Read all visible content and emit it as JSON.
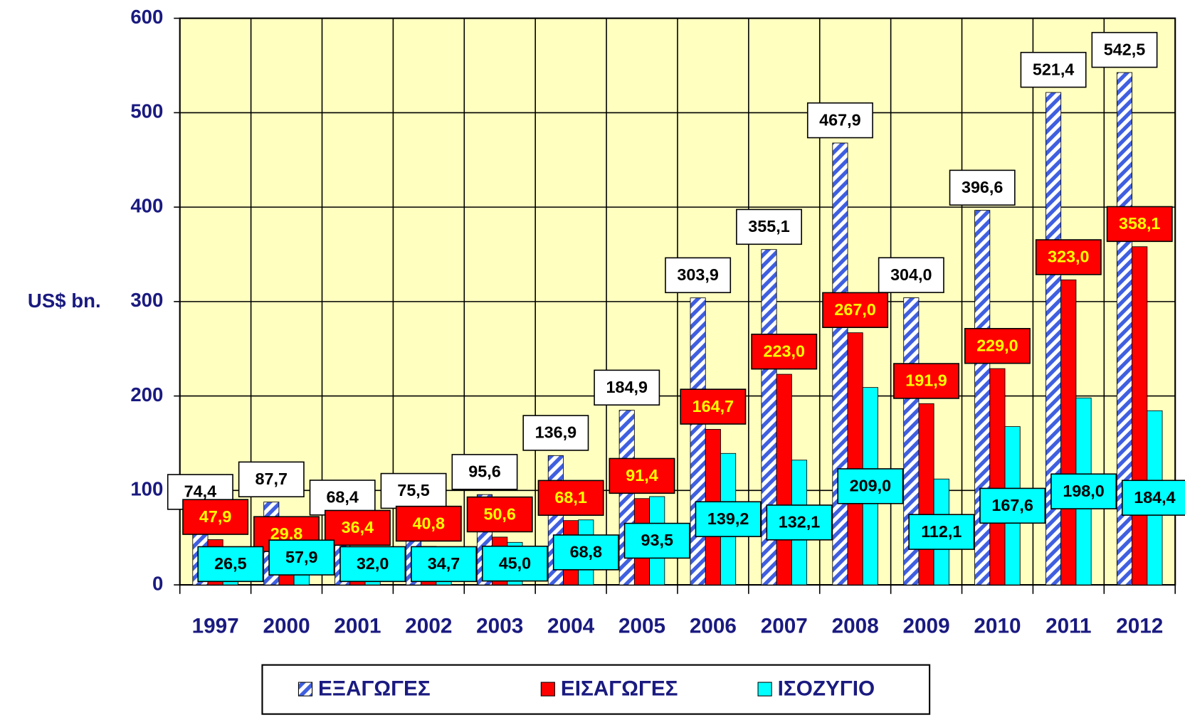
{
  "chart_data": {
    "type": "bar",
    "y_label": "US$ bn.",
    "categories": [
      "1997",
      "2000",
      "2001",
      "2002",
      "2003",
      "2004",
      "2005",
      "2006",
      "2007",
      "2008",
      "2009",
      "2010",
      "2011",
      "2012"
    ],
    "series": [
      {
        "name": "ΕΞΑΓΩΓΕΣ",
        "color": "#3f5fe0",
        "values": [
          74.4,
          87.7,
          68.4,
          75.5,
          95.6,
          136.9,
          184.9,
          303.9,
          355.1,
          467.9,
          304.0,
          396.6,
          521.4,
          542.5
        ],
        "value_labels": [
          "74,4",
          "87,7",
          "68,4",
          "75,5",
          "95,6",
          "136,9",
          "184,9",
          "303,9",
          "355,1",
          "467,9",
          "304,0",
          "396,6",
          "521,4",
          "542,5"
        ]
      },
      {
        "name": "ΕΙΣΑΓΩΓΕΣ",
        "color": "#ff0000",
        "values": [
          47.9,
          29.8,
          36.4,
          40.8,
          50.6,
          68.1,
          91.4,
          164.7,
          223.0,
          267.0,
          191.9,
          229.0,
          323.0,
          358.1
        ],
        "value_labels": [
          "47,9",
          "29,8",
          "36,4",
          "40,8",
          "50,6",
          "68,1",
          "91,4",
          "164,7",
          "223,0",
          "267,0",
          "191,9",
          "229,0",
          "323,0",
          "358,1"
        ]
      },
      {
        "name": "ΙΣΟΖΥΓΙΟ",
        "color": "#00ffff",
        "values": [
          26.5,
          57.9,
          32.0,
          34.7,
          45.0,
          68.8,
          93.5,
          139.2,
          132.1,
          209.0,
          112.1,
          167.6,
          198.0,
          184.4
        ],
        "value_labels": [
          "26,5",
          "57,9",
          "32,0",
          "34,7",
          "45,0",
          "68,8",
          "93,5",
          "139,2",
          "132,1",
          "209,0",
          "112,1",
          "167,6",
          "198,0",
          "184,4"
        ]
      }
    ],
    "ylim": [
      0,
      600
    ],
    "yticks": [
      0,
      100,
      200,
      300,
      400,
      500,
      600
    ],
    "grid": true
  }
}
